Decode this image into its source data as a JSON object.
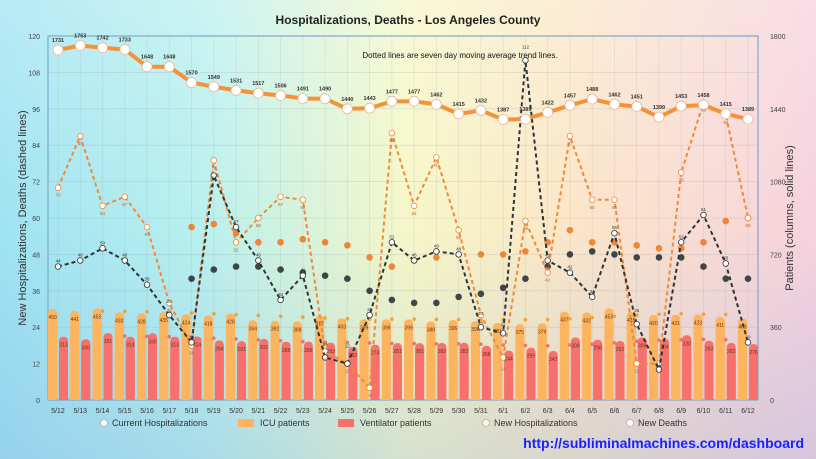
{
  "chart_data": {
    "type": "bar+line",
    "title": "Hospitalizations, Deaths - Los Angeles County",
    "annotation": "Dotted lines are seven day moving average trend lines.",
    "ylabel_left": "New Hospitalizations, Deaths (dashed lines)",
    "ylabel_right": "Patients (columns, solid lines)",
    "ylim_left": [
      0,
      120
    ],
    "ylim_right": [
      0,
      1800
    ],
    "yticks_left": [
      0,
      12,
      24,
      36,
      48,
      60,
      72,
      84,
      96,
      108,
      120
    ],
    "yticks_right": [
      0,
      360,
      720,
      1080,
      1440,
      1800
    ],
    "grid": true,
    "legend_placement": "bottom",
    "categories": [
      "5/12",
      "5/13",
      "5/14",
      "5/15",
      "5/16",
      "5/17",
      "5/18",
      "5/19",
      "5/20",
      "5/21",
      "5/22",
      "5/23",
      "5/24",
      "5/25",
      "5/26",
      "5/27",
      "5/28",
      "5/29",
      "5/30",
      "5/31",
      "6/1",
      "6/2",
      "6/3",
      "6/4",
      "6/5",
      "6/6",
      "6/7",
      "6/8",
      "6/9",
      "6/10",
      "6/11",
      "6/12"
    ],
    "series": [
      {
        "name": "Current Hospitalizations",
        "axis": "right",
        "kind": "solid-line",
        "color": "#f39237",
        "values": [
          1731,
          1753,
          1742,
          1733,
          1648,
          1648,
          1570,
          1549,
          1531,
          1517,
          1506,
          1491,
          1490,
          1440,
          1443,
          1477,
          1477,
          1462,
          1415,
          1432,
          1387,
          1389,
          1422,
          1457,
          1488,
          1462,
          1451,
          1399,
          1453,
          1458,
          1415,
          1389
        ]
      },
      {
        "name": "ICU patients",
        "axis": "right",
        "kind": "column",
        "color": "#fdb45e",
        "values": [
          450,
          441,
          453,
          433,
          428,
          435,
          424,
          418,
          428,
          394,
          392,
          388,
          417,
          403,
          399,
          399,
          399,
          388,
          396,
          390,
          381,
          375,
          379,
          437,
          432,
          453,
          435,
          420,
          421,
          423,
          411,
          403
        ]
      },
      {
        "name": "Ventilator patients",
        "axis": "right",
        "kind": "column",
        "color": "#f7706c",
        "values": [
          313,
          300,
          331,
          313,
          330,
          313,
          314,
          294,
          291,
          302,
          288,
          288,
          283,
          263,
          274,
          281,
          281,
          282,
          283,
          268,
          244,
          259,
          242,
          309,
          298,
          292,
          309,
          304,
          320,
          293,
          282,
          276
        ]
      },
      {
        "name": "New Hospitalizations",
        "axis": "left",
        "kind": "dashed-line",
        "color": "#f08a3a",
        "values": [
          70,
          87,
          64,
          67,
          57,
          32,
          18,
          79,
          52,
          60,
          67,
          66,
          16,
          12,
          4,
          88,
          64,
          80,
          56,
          28,
          14,
          59,
          42,
          87,
          66,
          66,
          12,
          12,
          75,
          98,
          94,
          60
        ]
      },
      {
        "name": "New Deaths",
        "axis": "left",
        "kind": "dashed-line",
        "color": "#2d3436",
        "values": [
          44,
          46,
          50,
          46,
          38,
          28,
          19,
          74,
          57,
          46,
          33,
          41,
          14,
          12,
          28,
          52,
          46,
          49,
          48,
          24,
          22,
          112,
          46,
          42,
          34,
          55,
          25,
          10,
          52,
          61,
          45,
          19
        ]
      }
    ],
    "moving_averages": [
      {
        "of": "New Hospitalizations",
        "axis": "left",
        "color": "#f07a28",
        "start": "5/18",
        "values": [
          57,
          58,
          55,
          52,
          52,
          53,
          52,
          51,
          47,
          44,
          46,
          47,
          48,
          48,
          48,
          49,
          52,
          56,
          52,
          52,
          51,
          50,
          50,
          52,
          59,
          60
        ]
      },
      {
        "of": "New Deaths",
        "axis": "left",
        "color": "#2d3436",
        "start": "5/18",
        "values": [
          40,
          43,
          44,
          44,
          43,
          42,
          41,
          40,
          36,
          33,
          32,
          32,
          34,
          35,
          37,
          40,
          44,
          48,
          49,
          48,
          47,
          47,
          47,
          44,
          40,
          40
        ]
      },
      {
        "of": "ICU patients",
        "axis": "right",
        "color": "#f0a020",
        "start": "5/14",
        "values": [
          440,
          438,
          436,
          434,
          430,
          426,
          422,
          418,
          414,
          410,
          406,
          402,
          400,
          400,
          400,
          399,
          398,
          398,
          397,
          397,
          398,
          402,
          408,
          414,
          420,
          424,
          426,
          424,
          423
        ]
      },
      {
        "of": "Ventilator patients",
        "axis": "right",
        "color": "#f06868",
        "start": "5/15",
        "values": [
          316,
          315,
          313,
          310,
          306,
          302,
          298,
          293,
          289,
          286,
          284,
          282,
          280,
          279,
          278,
          278,
          276,
          272,
          270,
          268,
          272,
          276,
          282,
          290,
          296,
          298,
          300,
          298
        ]
      }
    ]
  },
  "footer": {
    "url": "http://subliminalmachines.com/dashboard"
  }
}
